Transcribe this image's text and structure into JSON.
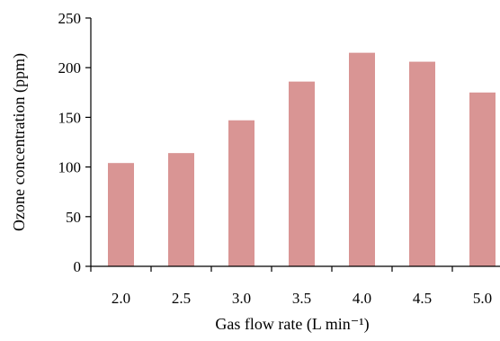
{
  "chart_data": {
    "type": "bar",
    "categories": [
      "2.0",
      "2.5",
      "3.0",
      "3.5",
      "4.0",
      "4.5",
      "5.0"
    ],
    "values": [
      104,
      114,
      147,
      186,
      215,
      206,
      175
    ],
    "xlabel": "Gas flow rate (L min⁻¹)",
    "ylabel": "Ozone concentration (ppm)",
    "ylim": [
      0,
      250
    ],
    "yticks": [
      "0",
      "50",
      "100",
      "150",
      "200",
      "250"
    ],
    "grid": false,
    "legend": "none",
    "bar_color": "#d99594"
  }
}
